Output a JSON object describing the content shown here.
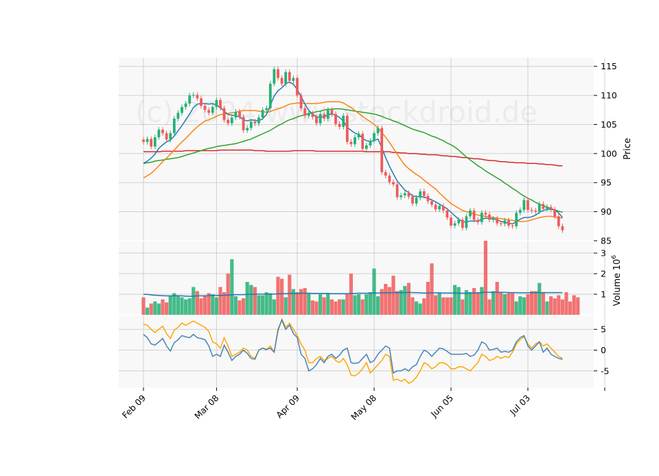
{
  "watermark": "(c) 2024 www.stockdroid.de",
  "colors": {
    "up": "#26b074",
    "down": "#f05a5a",
    "sma_fast": "#1f77b4",
    "sma_mid": "#ff7f0e",
    "sma_slow": "#2ca02c",
    "sma_long": "#d62728",
    "vol_avg": "#1f77b4",
    "osc_1": "#4682b4",
    "osc_2": "#ffa500",
    "panel_bg": "#f8f8f8"
  },
  "chart_data": [
    {
      "type": "candlestick",
      "ylabel": "Price",
      "ylim": [
        85,
        116.5
      ],
      "yticks": [
        85,
        90,
        95,
        100,
        105,
        110,
        115
      ],
      "x_tick_labels": [
        "Feb 09",
        "Mar 08",
        "Apr 09",
        "May 08",
        "Jun 05",
        "Jul 03"
      ],
      "x_tick_index": [
        0,
        19,
        40,
        60,
        80,
        100
      ],
      "close": [
        102.0,
        102.5,
        101.2,
        102.8,
        104.1,
        103.5,
        102.4,
        103.5,
        106.0,
        107.0,
        108.0,
        108.6,
        110.0,
        110.1,
        109.5,
        108.2,
        107.5,
        107.0,
        108.0,
        109.2,
        107.8,
        105.8,
        105.2,
        106.2,
        107.2,
        106.3,
        104.0,
        104.4,
        105.5,
        105.2,
        106.2,
        107.5,
        107.8,
        112.0,
        114.5,
        113.0,
        112.0,
        114.0,
        112.5,
        113.0,
        110.0,
        107.8,
        106.5,
        106.9,
        106.3,
        105.2,
        106.8,
        106.0,
        107.5,
        106.8,
        105.1,
        104.6,
        106.5,
        102.0,
        101.6,
        102.8,
        103.4,
        100.8,
        101.4,
        102.2,
        103.5,
        104.4,
        96.8,
        96.2,
        95.1,
        94.7,
        92.5,
        92.8,
        93.2,
        92.6,
        91.4,
        92.4,
        93.5,
        92.7,
        91.8,
        91.2,
        90.4,
        91.0,
        90.2,
        89.0,
        87.6,
        88.0,
        88.6,
        87.2,
        89.2,
        90.2,
        88.6,
        88.2,
        89.8,
        89.5,
        88.6,
        88.8,
        88.0,
        87.9,
        88.5,
        87.6,
        87.5,
        89.8,
        90.3,
        92.0,
        90.3,
        90.2,
        90.0,
        91.3,
        90.5,
        90.8,
        90.4,
        89.2,
        87.5,
        86.8
      ],
      "sma_fast": [
        98.3,
        98.7,
        99.2,
        99.9,
        100.9,
        101.5,
        102.0,
        102.3,
        103.0,
        103.9,
        104.8,
        105.8,
        106.8,
        107.9,
        108.5,
        108.6,
        108.6,
        108.5,
        108.6,
        108.3,
        107.9,
        107.3,
        106.7,
        106.6,
        106.5,
        106.3,
        105.8,
        105.6,
        105.8,
        105.7,
        105.6,
        106.0,
        106.7,
        108.3,
        109.9,
        110.8,
        111.3,
        112.0,
        112.3,
        111.9,
        111.0,
        109.8,
        108.5,
        107.4,
        106.8,
        106.3,
        106.3,
        106.3,
        106.7,
        106.8,
        106.6,
        106.2,
        105.6,
        104.5,
        104.0,
        103.5,
        103.3,
        102.6,
        102.2,
        102.1,
        102.2,
        102.5,
        101.0,
        99.3,
        97.8,
        96.5,
        95.3,
        94.5,
        93.7,
        93.3,
        92.7,
        92.6,
        92.6,
        92.5,
        92.3,
        92.0,
        91.7,
        91.3,
        90.9,
        90.5,
        89.9,
        89.3,
        88.7,
        88.3,
        88.2,
        88.4,
        88.4,
        88.4,
        88.7,
        88.9,
        88.8,
        88.8,
        88.6,
        88.3,
        88.2,
        88.0,
        87.9,
        88.3,
        88.7,
        89.0,
        89.0,
        89.1,
        89.4,
        89.9,
        90.2,
        90.4,
        90.4,
        90.3,
        89.8,
        89.0
      ],
      "sma_mid": [
        95.8,
        96.2,
        96.6,
        97.2,
        97.9,
        98.6,
        99.2,
        99.9,
        100.6,
        101.3,
        102.0,
        102.6,
        103.3,
        104.0,
        104.6,
        105.1,
        105.6,
        105.8,
        106.1,
        106.4,
        106.7,
        106.8,
        106.9,
        107.0,
        107.1,
        107.3,
        107.4,
        107.4,
        107.4,
        107.4,
        107.3,
        107.2,
        107.1,
        107.2,
        107.5,
        107.7,
        107.9,
        108.2,
        108.5,
        108.6,
        108.7,
        108.7,
        108.6,
        108.6,
        108.6,
        108.6,
        108.7,
        108.8,
        108.9,
        108.9,
        108.9,
        108.9,
        108.7,
        108.3,
        107.9,
        107.4,
        106.9,
        106.4,
        105.9,
        105.5,
        105.0,
        104.4,
        103.6,
        102.8,
        101.9,
        100.9,
        99.9,
        98.9,
        98.0,
        97.4,
        96.9,
        96.4,
        96.0,
        95.4,
        94.9,
        94.4,
        93.9,
        93.2,
        92.6,
        92.0,
        91.4,
        91.0,
        90.6,
        90.2,
        90.0,
        89.8,
        89.6,
        89.4,
        89.3,
        89.2,
        89.1,
        89.0,
        88.9,
        88.8,
        88.7,
        88.6,
        88.5,
        88.4,
        88.3,
        88.3,
        88.4,
        88.6,
        88.8,
        89.0,
        89.1,
        89.2,
        89.2,
        89.1,
        89.0,
        88.9
      ],
      "sma_slow": [
        98.3,
        98.4,
        98.5,
        98.7,
        98.8,
        98.9,
        99.0,
        99.1,
        99.2,
        99.3,
        99.5,
        99.7,
        99.9,
        100.1,
        100.3,
        100.5,
        100.7,
        100.9,
        101.0,
        101.2,
        101.3,
        101.4,
        101.5,
        101.6,
        101.7,
        101.9,
        102.1,
        102.3,
        102.5,
        102.8,
        103.1,
        103.4,
        103.7,
        104.0,
        104.4,
        104.8,
        105.1,
        105.5,
        105.8,
        106.0,
        106.3,
        106.5,
        106.7,
        106.9,
        107.0,
        107.2,
        107.3,
        107.5,
        107.6,
        107.6,
        107.7,
        107.7,
        107.6,
        107.5,
        107.4,
        107.3,
        107.2,
        107.1,
        107.0,
        106.9,
        106.8,
        106.6,
        106.4,
        106.1,
        105.9,
        105.6,
        105.4,
        105.1,
        104.8,
        104.5,
        104.2,
        104.0,
        103.8,
        103.6,
        103.3,
        103.0,
        102.8,
        102.5,
        102.2,
        101.8,
        101.5,
        101.1,
        100.6,
        100.0,
        99.4,
        98.9,
        98.4,
        97.9,
        97.5,
        97.0,
        96.6,
        96.2,
        95.8,
        95.4,
        94.9,
        94.5,
        94.0,
        93.6,
        93.1,
        92.7,
        92.3,
        92.0,
        91.6,
        91.3,
        91.0,
        90.8,
        90.5,
        90.3,
        90.1,
        89.9
      ],
      "sma_long": [
        100.3,
        100.3,
        100.3,
        100.3,
        100.3,
        100.4,
        100.4,
        100.4,
        100.4,
        100.4,
        100.4,
        100.5,
        100.5,
        100.5,
        100.5,
        100.5,
        100.5,
        100.5,
        100.5,
        100.5,
        100.6,
        100.6,
        100.6,
        100.6,
        100.6,
        100.6,
        100.6,
        100.6,
        100.6,
        100.5,
        100.5,
        100.5,
        100.4,
        100.4,
        100.4,
        100.4,
        100.4,
        100.4,
        100.4,
        100.5,
        100.5,
        100.5,
        100.5,
        100.5,
        100.5,
        100.4,
        100.4,
        100.4,
        100.4,
        100.4,
        100.4,
        100.4,
        100.4,
        100.4,
        100.4,
        100.4,
        100.4,
        100.4,
        100.3,
        100.3,
        100.3,
        100.3,
        100.3,
        100.3,
        100.3,
        100.2,
        100.2,
        100.1,
        100.1,
        100.0,
        100.0,
        100.0,
        99.9,
        99.9,
        99.8,
        99.8,
        99.8,
        99.7,
        99.6,
        99.6,
        99.5,
        99.5,
        99.4,
        99.3,
        99.3,
        99.2,
        99.1,
        99.1,
        99.0,
        98.9,
        98.8,
        98.8,
        98.7,
        98.6,
        98.6,
        98.5,
        98.5,
        98.4,
        98.4,
        98.4,
        98.3,
        98.3,
        98.3,
        98.2,
        98.2,
        98.1,
        98.1,
        98.0,
        97.9,
        97.9
      ]
    },
    {
      "type": "bar",
      "ylabel": "Volume",
      "unit_label": "10",
      "unit_exponent": "6",
      "ylim": [
        0,
        3.6
      ],
      "yticks": [
        1,
        2,
        3
      ],
      "values": [
        0.85,
        0.35,
        0.55,
        0.65,
        0.55,
        0.75,
        0.6,
        0.9,
        1.05,
        0.95,
        0.85,
        0.75,
        0.8,
        1.35,
        1.15,
        0.8,
        0.95,
        1.05,
        1.0,
        0.85,
        1.35,
        1.1,
        2.0,
        2.7,
        0.9,
        0.7,
        0.8,
        1.6,
        1.45,
        1.35,
        0.95,
        0.95,
        1.1,
        1.05,
        0.75,
        1.85,
        1.75,
        0.85,
        1.95,
        1.25,
        1.1,
        1.25,
        1.3,
        1.05,
        0.7,
        0.65,
        1.0,
        0.85,
        1.05,
        0.75,
        0.65,
        0.75,
        0.75,
        1.0,
        2.0,
        0.95,
        1.0,
        0.75,
        1.0,
        1.1,
        2.25,
        0.9,
        1.25,
        1.5,
        1.35,
        1.9,
        1.15,
        1.2,
        1.4,
        1.55,
        0.85,
        0.65,
        0.55,
        0.8,
        1.6,
        2.5,
        0.95,
        1.05,
        0.85,
        0.85,
        0.85,
        1.45,
        1.35,
        0.75,
        1.2,
        1.1,
        1.3,
        1.1,
        1.35,
        3.6,
        0.75,
        1.15,
        1.6,
        1.1,
        1.0,
        1.05,
        1.05,
        0.65,
        0.9,
        0.85,
        1.0,
        1.15,
        1.15,
        1.55,
        1.1,
        0.65,
        0.9,
        0.8,
        0.95,
        0.75,
        1.1,
        0.65,
        0.95,
        0.85
      ],
      "vol_avg": [
        1.0,
        0.99,
        0.97,
        0.95,
        0.94,
        0.93,
        0.92,
        0.92,
        0.93,
        0.93,
        0.92,
        0.91,
        0.9,
        0.91,
        0.92,
        0.92,
        0.92,
        0.93,
        0.94,
        0.94,
        0.94,
        0.95,
        0.96,
        0.97,
        0.98,
        0.98,
        0.98,
        0.99,
        1.0,
        1.0,
        1.01,
        1.01,
        1.01,
        1.01,
        1.01,
        1.02,
        1.03,
        1.03,
        1.04,
        1.04,
        1.04,
        1.05,
        1.05,
        1.05,
        1.04,
        1.04,
        1.04,
        1.04,
        1.04,
        1.03,
        1.03,
        1.03,
        1.03,
        1.03,
        1.04,
        1.04,
        1.05,
        1.05,
        1.05,
        1.06,
        1.06,
        1.06,
        1.07,
        1.07,
        1.07,
        1.08,
        1.08,
        1.08,
        1.08,
        1.09,
        1.08,
        1.08,
        1.07,
        1.06,
        1.06,
        1.07,
        1.07,
        1.07,
        1.06,
        1.06,
        1.06,
        1.06,
        1.06,
        1.05,
        1.05,
        1.06,
        1.06,
        1.07,
        1.08,
        1.1,
        1.09,
        1.09,
        1.09,
        1.09,
        1.09,
        1.08,
        1.08,
        1.08,
        1.07,
        1.07,
        1.07,
        1.08,
        1.08,
        1.08,
        1.08,
        1.08,
        1.08,
        1.08,
        1.08,
        1.08
      ]
    },
    {
      "type": "line",
      "ylim": [
        -9,
        8.5
      ],
      "yticks": [
        5,
        0,
        -5
      ],
      "series_1": [
        3.8,
        3.0,
        1.5,
        1.2,
        2.0,
        2.8,
        1.0,
        -0.2,
        1.8,
        2.5,
        3.5,
        3.2,
        3.0,
        3.8,
        3.0,
        2.8,
        2.5,
        1.0,
        -1.5,
        -1.0,
        -1.5,
        1.2,
        -0.5,
        -2.5,
        -1.5,
        -1.0,
        0.0,
        -0.8,
        -2.0,
        -2.2,
        0.0,
        0.5,
        0.2,
        0.5,
        -0.5,
        5.0,
        7.2,
        5.0,
        6.0,
        4.0,
        3.0,
        -1.0,
        -2.0,
        -5.0,
        -4.5,
        -3.5,
        -2.0,
        -3.0,
        -1.5,
        -1.0,
        -2.0,
        -1.2,
        0.0,
        0.5,
        -3.0,
        -3.2,
        -3.0,
        -2.0,
        -1.0,
        -3.0,
        -2.5,
        -1.0,
        0.0,
        1.0,
        0.5,
        -5.5,
        -5.0,
        -5.0,
        -4.5,
        -5.0,
        -4.0,
        -3.5,
        -1.5,
        0.0,
        -0.5,
        -1.5,
        -0.5,
        0.5,
        0.3,
        -0.3,
        -1.0,
        -1.0,
        -1.0,
        -1.0,
        -0.8,
        -1.5,
        -1.2,
        0.0,
        2.0,
        1.5,
        0.0,
        0.2,
        0.5,
        -0.5,
        -0.3,
        -0.5,
        0.0,
        2.0,
        3.0,
        3.5,
        1.0,
        0.0,
        1.0,
        2.0,
        -0.5,
        0.5,
        -1.0,
        -1.5,
        -2.0,
        -2.2
      ],
      "series_2": [
        6.2,
        6.0,
        5.0,
        4.2,
        5.0,
        5.8,
        4.0,
        2.8,
        4.8,
        5.5,
        6.5,
        6.0,
        6.5,
        7.0,
        6.5,
        6.0,
        5.5,
        4.5,
        2.0,
        1.5,
        0.5,
        3.0,
        1.0,
        -1.5,
        -1.0,
        -0.5,
        0.5,
        0.0,
        -1.5,
        -2.0,
        0.0,
        0.5,
        0.0,
        1.0,
        -0.5,
        4.5,
        7.5,
        5.5,
        6.5,
        5.0,
        3.5,
        1.5,
        0.0,
        -3.0,
        -3.0,
        -2.0,
        -1.5,
        -2.5,
        -2.0,
        -1.5,
        -2.5,
        -3.0,
        -2.0,
        -3.5,
        -6.0,
        -6.2,
        -5.5,
        -4.5,
        -3.0,
        -5.5,
        -4.5,
        -3.5,
        -2.5,
        -1.0,
        -1.5,
        -7.2,
        -7.0,
        -7.5,
        -7.0,
        -8.0,
        -7.5,
        -6.5,
        -5.0,
        -3.0,
        -3.5,
        -4.5,
        -4.0,
        -3.0,
        -3.0,
        -3.5,
        -4.5,
        -4.5,
        -4.0,
        -4.0,
        -4.5,
        -5.0,
        -4.0,
        -3.0,
        -1.0,
        -1.5,
        -2.5,
        -2.2,
        -1.5,
        -2.0,
        -1.5,
        -1.8,
        -0.5,
        1.5,
        2.5,
        3.2,
        1.5,
        0.5,
        1.5,
        2.0,
        1.0,
        1.5,
        0.5,
        -0.5,
        -1.5,
        -2.0
      ]
    }
  ]
}
